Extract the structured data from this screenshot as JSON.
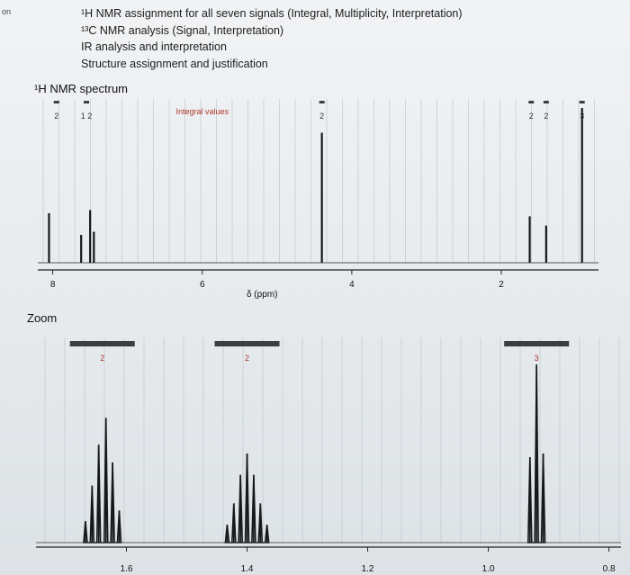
{
  "side_tab": "on",
  "tasks": [
    "¹H NMR assignment for all seven signals (Integral, Multiplicity, Interpretation)",
    "¹³C NMR analysis (Signal, Interpretation)",
    "IR analysis and interpretation",
    "Structure assignment and justification"
  ],
  "spectrum_title": "¹H NMR spectrum",
  "zoom_title": "Zoom",
  "colors": {
    "grid": "#b9c1c8",
    "peak": "#15181b",
    "bar": "#3a3f44",
    "integral_red": "#b0352f"
  },
  "chart_data": [
    {
      "type": "line",
      "title": "",
      "xlabel": "δ (ppm)",
      "ylabel": "",
      "x_reversed": true,
      "xlim": [
        8.2,
        0.7
      ],
      "x_ticks": [
        8,
        6,
        4,
        2
      ],
      "integral_values_label": "Integral values",
      "peaks": [
        {
          "ppm": 8.05,
          "height": 0.32
        },
        {
          "ppm": 7.62,
          "height": 0.18
        },
        {
          "ppm": 7.5,
          "height": 0.34
        },
        {
          "ppm": 7.45,
          "height": 0.2
        },
        {
          "ppm": 4.4,
          "height": 0.84
        },
        {
          "ppm": 1.62,
          "height": 0.3
        },
        {
          "ppm": 1.4,
          "height": 0.24
        },
        {
          "ppm": 0.92,
          "height": 1.0
        }
      ],
      "integrals": [
        {
          "ppm": 7.95,
          "value": "2"
        },
        {
          "ppm": 7.55,
          "value": "1 2"
        },
        {
          "ppm": 4.4,
          "value": "2"
        },
        {
          "ppm": 1.6,
          "value": "2"
        },
        {
          "ppm": 1.4,
          "value": "2"
        },
        {
          "ppm": 0.92,
          "value": "3"
        }
      ]
    },
    {
      "type": "line",
      "title": "Zoom",
      "xlabel": "",
      "ylabel": "",
      "x_reversed": true,
      "xlim": [
        1.75,
        0.78
      ],
      "x_ticks": [
        1.6,
        1.4,
        1.2,
        1.0,
        0.8
      ],
      "x_tick_labels": [
        "1.6",
        "1.4",
        "1.2",
        "1.0",
        "0.8"
      ],
      "multiplets": [
        {
          "center": 1.64,
          "integral": "2",
          "lines": [
            [
              -0.028,
              0.18
            ],
            [
              -0.017,
              0.45
            ],
            [
              -0.006,
              0.7
            ],
            [
              0.006,
              0.55
            ],
            [
              0.017,
              0.32
            ],
            [
              0.028,
              0.12
            ]
          ]
        },
        {
          "center": 1.4,
          "integral": "2",
          "lines": [
            [
              -0.033,
              0.1
            ],
            [
              -0.022,
              0.22
            ],
            [
              -0.011,
              0.38
            ],
            [
              0.0,
              0.5
            ],
            [
              0.011,
              0.38
            ],
            [
              0.022,
              0.22
            ],
            [
              0.033,
              0.1
            ]
          ]
        },
        {
          "center": 0.92,
          "integral": "3",
          "lines": [
            [
              -0.011,
              0.5
            ],
            [
              0.0,
              1.0
            ],
            [
              0.011,
              0.48
            ]
          ]
        }
      ]
    }
  ]
}
